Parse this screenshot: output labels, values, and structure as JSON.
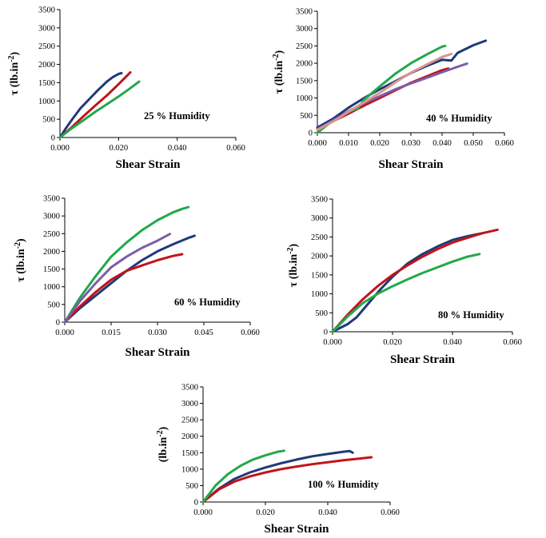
{
  "colors": {
    "navy": "#1f3a78",
    "red": "#c0141b",
    "green": "#22a84a",
    "purple": "#7b5ea7",
    "pink": "#d99593"
  },
  "chart_data": [
    {
      "type": "line",
      "annotation": "25 % Humidity",
      "xlabel": "Shear Strain",
      "ylabel": "τ (lb.in⁻²)",
      "xlim": [
        0,
        0.06
      ],
      "ylim": [
        0,
        3500
      ],
      "xticks": [
        "0.000",
        "0.020",
        "0.040",
        "0.060"
      ],
      "yticks": [
        "0",
        "500",
        "1000",
        "1500",
        "2000",
        "2500",
        "3000",
        "3500"
      ],
      "series": [
        {
          "color": "navy",
          "x": [
            0,
            0.002,
            0.004,
            0.007,
            0.01,
            0.013,
            0.016,
            0.018,
            0.02,
            0.021
          ],
          "y": [
            0,
            250,
            480,
            800,
            1050,
            1300,
            1530,
            1650,
            1740,
            1760
          ]
        },
        {
          "color": "red",
          "x": [
            0,
            0.004,
            0.008,
            0.012,
            0.016,
            0.02,
            0.023,
            0.024
          ],
          "y": [
            0,
            280,
            580,
            870,
            1150,
            1460,
            1700,
            1780
          ]
        },
        {
          "color": "green",
          "x": [
            0,
            0.004,
            0.008,
            0.012,
            0.016,
            0.02,
            0.024,
            0.027
          ],
          "y": [
            0,
            250,
            470,
            700,
            910,
            1120,
            1350,
            1530
          ]
        }
      ]
    },
    {
      "type": "line",
      "annotation": "40 % Humidity",
      "xlabel": "Shear Strain",
      "ylabel": "τ (lb.in⁻²)",
      "xlim": [
        0,
        0.06
      ],
      "ylim": [
        0,
        3500
      ],
      "xticks": [
        "0.000",
        "0.010",
        "0.020",
        "0.030",
        "0.040",
        "0.050",
        "0.060"
      ],
      "yticks": [
        "0",
        "500",
        "1000",
        "1500",
        "2000",
        "2500",
        "3000",
        "3500"
      ],
      "series": [
        {
          "color": "navy",
          "x": [
            0,
            0.005,
            0.01,
            0.015,
            0.02,
            0.025,
            0.03,
            0.035,
            0.04,
            0.043,
            0.045,
            0.05,
            0.054
          ],
          "y": [
            150,
            400,
            720,
            1000,
            1250,
            1480,
            1720,
            1920,
            2100,
            2080,
            2300,
            2520,
            2650
          ]
        },
        {
          "color": "red",
          "x": [
            0,
            0.005,
            0.01,
            0.015,
            0.02,
            0.025,
            0.03,
            0.035,
            0.04,
            0.042
          ],
          "y": [
            100,
            330,
            550,
            780,
            1000,
            1220,
            1440,
            1620,
            1800,
            1850
          ]
        },
        {
          "color": "green",
          "x": [
            0,
            0.005,
            0.01,
            0.013,
            0.015,
            0.02,
            0.025,
            0.03,
            0.035,
            0.04,
            0.041
          ],
          "y": [
            0,
            350,
            600,
            700,
            950,
            1330,
            1700,
            2000,
            2250,
            2480,
            2500
          ]
        },
        {
          "color": "purple",
          "x": [
            0,
            0.005,
            0.01,
            0.015,
            0.02,
            0.025,
            0.03,
            0.035,
            0.04,
            0.045,
            0.048
          ],
          "y": [
            100,
            350,
            620,
            850,
            1050,
            1250,
            1420,
            1580,
            1740,
            1900,
            1990
          ]
        },
        {
          "color": "pink",
          "x": [
            0,
            0.005,
            0.01,
            0.015,
            0.02,
            0.025,
            0.03,
            0.035,
            0.04,
            0.043
          ],
          "y": [
            80,
            320,
            600,
            880,
            1150,
            1450,
            1730,
            1960,
            2180,
            2270
          ]
        }
      ]
    },
    {
      "type": "line",
      "annotation": "60 % Humidity",
      "xlabel": "Shear Strain",
      "ylabel": "τ (lb.in⁻²)",
      "xlim": [
        0,
        0.06
      ],
      "ylim": [
        0,
        3500
      ],
      "xticks": [
        "0.000",
        "0.015",
        "0.030",
        "0.045",
        "0.060"
      ],
      "yticks": [
        "0",
        "500",
        "1000",
        "1500",
        "2000",
        "2500",
        "3000",
        "3500"
      ],
      "series": [
        {
          "color": "navy",
          "x": [
            0,
            0.005,
            0.01,
            0.015,
            0.02,
            0.025,
            0.03,
            0.035,
            0.04,
            0.042
          ],
          "y": [
            0,
            400,
            750,
            1100,
            1450,
            1750,
            2000,
            2200,
            2380,
            2440
          ]
        },
        {
          "color": "red",
          "x": [
            0,
            0.005,
            0.01,
            0.015,
            0.02,
            0.025,
            0.03,
            0.035,
            0.038
          ],
          "y": [
            0,
            450,
            850,
            1200,
            1450,
            1600,
            1750,
            1870,
            1920
          ]
        },
        {
          "color": "green",
          "x": [
            0,
            0.005,
            0.01,
            0.015,
            0.02,
            0.025,
            0.03,
            0.035,
            0.038,
            0.04
          ],
          "y": [
            0,
            700,
            1300,
            1850,
            2250,
            2600,
            2880,
            3100,
            3200,
            3250
          ]
        },
        {
          "color": "purple",
          "x": [
            0,
            0.005,
            0.01,
            0.015,
            0.02,
            0.025,
            0.03,
            0.034
          ],
          "y": [
            0,
            600,
            1100,
            1550,
            1850,
            2100,
            2300,
            2490
          ]
        }
      ]
    },
    {
      "type": "line",
      "annotation": "80 % Humidity",
      "xlabel": "Shear Strain",
      "ylabel": "τ (lb.in⁻²)",
      "xlim": [
        0,
        0.06
      ],
      "ylim": [
        0,
        3500
      ],
      "xticks": [
        "0.000",
        "0.020",
        "0.040",
        "0.060"
      ],
      "yticks": [
        "0",
        "500",
        "1000",
        "1500",
        "2000",
        "2500",
        "3000",
        "3500"
      ],
      "series": [
        {
          "color": "navy",
          "x": [
            0,
            0.005,
            0.008,
            0.012,
            0.016,
            0.02,
            0.025,
            0.03,
            0.035,
            0.04,
            0.045,
            0.05
          ],
          "y": [
            0,
            200,
            380,
            750,
            1120,
            1450,
            1800,
            2050,
            2250,
            2420,
            2520,
            2600
          ]
        },
        {
          "color": "red",
          "x": [
            0,
            0.005,
            0.01,
            0.015,
            0.02,
            0.025,
            0.03,
            0.035,
            0.04,
            0.045,
            0.05,
            0.055
          ],
          "y": [
            0,
            450,
            850,
            1200,
            1500,
            1750,
            1980,
            2180,
            2350,
            2480,
            2600,
            2690
          ]
        },
        {
          "color": "green",
          "x": [
            0,
            0.005,
            0.01,
            0.015,
            0.02,
            0.025,
            0.03,
            0.035,
            0.04,
            0.045,
            0.049
          ],
          "y": [
            0,
            400,
            750,
            1000,
            1200,
            1380,
            1550,
            1700,
            1850,
            1980,
            2050
          ]
        }
      ]
    },
    {
      "type": "line",
      "annotation": "100 % Humidity",
      "xlabel": "Shear Strain",
      "ylabel": "(lb.in⁻²)",
      "xlim": [
        0,
        0.06
      ],
      "ylim": [
        0,
        3500
      ],
      "xticks": [
        "0.000",
        "0.020",
        "0.040",
        "0.060"
      ],
      "yticks": [
        "0",
        "500",
        "1000",
        "1500",
        "2000",
        "2500",
        "3000",
        "3500"
      ],
      "series": [
        {
          "color": "navy",
          "x": [
            0,
            0.005,
            0.01,
            0.015,
            0.02,
            0.025,
            0.03,
            0.035,
            0.04,
            0.045,
            0.047,
            0.048
          ],
          "y": [
            0,
            400,
            700,
            900,
            1050,
            1180,
            1290,
            1390,
            1460,
            1530,
            1550,
            1500
          ]
        },
        {
          "color": "red",
          "x": [
            0,
            0.005,
            0.01,
            0.015,
            0.02,
            0.025,
            0.03,
            0.035,
            0.04,
            0.045,
            0.05,
            0.054
          ],
          "y": [
            0,
            380,
            620,
            780,
            900,
            1000,
            1080,
            1150,
            1210,
            1270,
            1320,
            1360
          ]
        },
        {
          "color": "green",
          "x": [
            0,
            0.004,
            0.008,
            0.012,
            0.016,
            0.02,
            0.024,
            0.026
          ],
          "y": [
            0,
            500,
            850,
            1100,
            1290,
            1420,
            1530,
            1560
          ]
        }
      ]
    }
  ]
}
